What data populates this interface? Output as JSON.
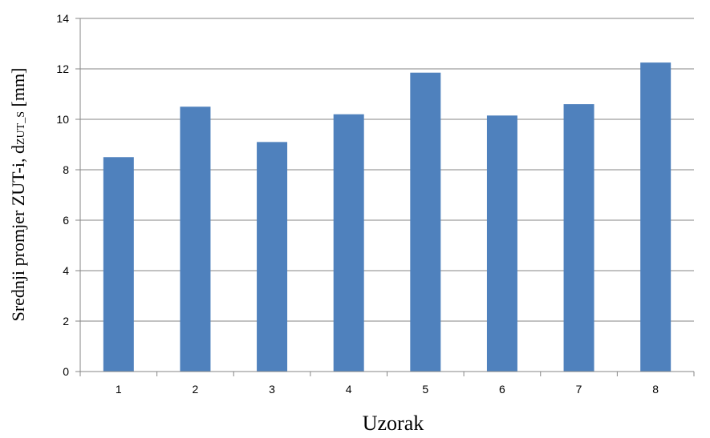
{
  "chart_data": {
    "type": "bar",
    "title": "",
    "xlabel": "Uzorak",
    "ylabel": {
      "main": "Srednji promjer ZUT-i, d",
      "subscript": "ZUT_S",
      "unit": " [mm]"
    },
    "categories": [
      "1",
      "2",
      "3",
      "4",
      "5",
      "6",
      "7",
      "8"
    ],
    "values": [
      8.5,
      10.5,
      9.1,
      10.2,
      11.85,
      10.15,
      10.6,
      12.25
    ],
    "ylim": [
      0,
      14
    ],
    "yticks": [
      0,
      2,
      4,
      6,
      8,
      10,
      12,
      14
    ],
    "grid": true,
    "legend": "none",
    "bar_color": "#4f81bd",
    "grid_color": "#868686"
  }
}
